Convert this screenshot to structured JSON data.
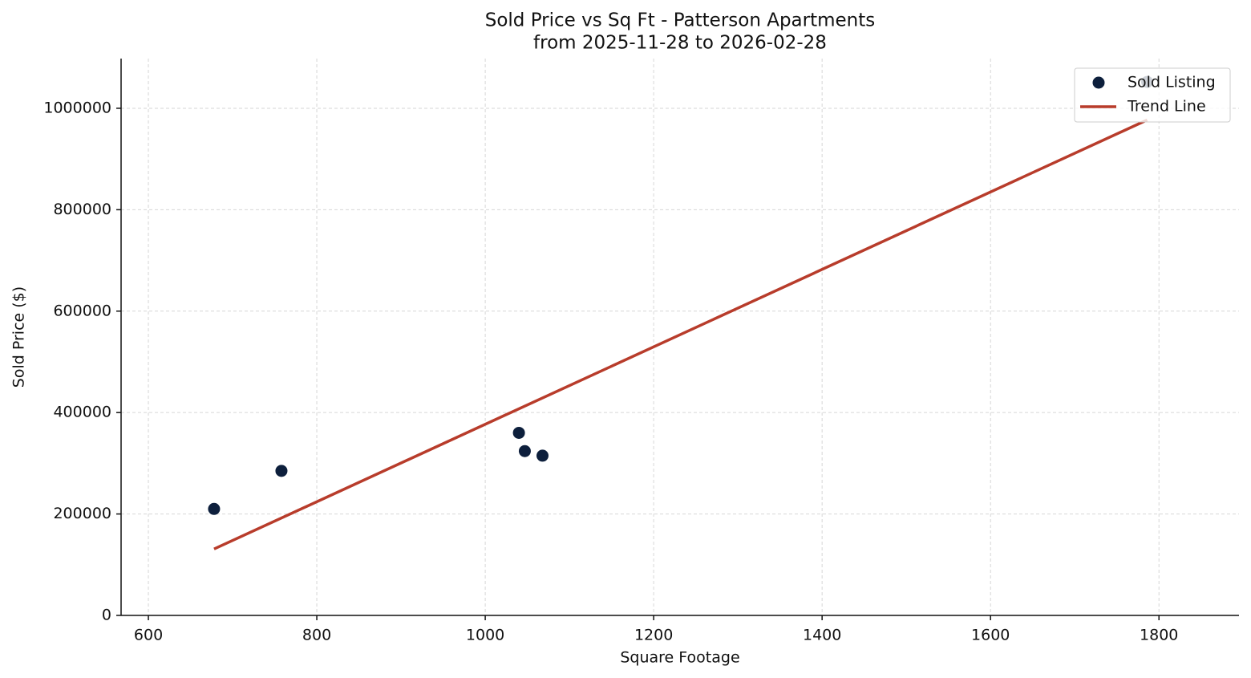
{
  "chart_data": {
    "type": "scatter",
    "title": "Sold Price vs Sq Ft - Patterson Apartments",
    "subtitle": "from 2025-11-28 to 2026-02-28",
    "x_label": "Square Footage",
    "y_label": "Sold Price ($)",
    "series": [
      {
        "name": "Sold Listing",
        "type": "scatter",
        "color": "#0d1f3c",
        "x": [
          678,
          758,
          1040,
          1047,
          1068,
          1786
        ],
        "values": [
          210000,
          285000,
          360000,
          324000,
          315000,
          1052000
        ]
      },
      {
        "name": "Trend Line",
        "type": "line",
        "color": "#b83c2b",
        "x": [
          678,
          1786
        ],
        "values": [
          131000,
          977000
        ]
      }
    ],
    "xlim": [
      567.6,
      1895
    ],
    "xticks": [
      600,
      800,
      1000,
      1200,
      1400,
      1600,
      1800
    ],
    "ylim": [
      0,
      1098000
    ],
    "yticks": [
      0,
      200000,
      400000,
      600000,
      800000,
      1000000
    ],
    "grid": true,
    "legend": "upper right"
  }
}
